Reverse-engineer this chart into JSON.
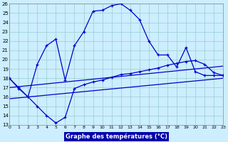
{
  "xlabel": "Graphe des températures (°C)",
  "background_color": "#cceeff",
  "line_color": "#0000cc",
  "grid_color": "#99cccc",
  "ylim": [
    13,
    26
  ],
  "xlim": [
    0,
    23
  ],
  "yticks": [
    13,
    14,
    15,
    16,
    17,
    18,
    19,
    20,
    21,
    22,
    23,
    24,
    25,
    26
  ],
  "xticks": [
    0,
    1,
    2,
    3,
    4,
    5,
    6,
    7,
    8,
    9,
    10,
    11,
    12,
    13,
    14,
    15,
    16,
    17,
    18,
    19,
    20,
    21,
    22,
    23
  ],
  "line_main": {
    "x": [
      0,
      1,
      2,
      3,
      4,
      5,
      6,
      7,
      8,
      9,
      10,
      11,
      12,
      13,
      14,
      15,
      16,
      17,
      18,
      19,
      20,
      21,
      22,
      23
    ],
    "y": [
      18.0,
      17.0,
      16.0,
      19.5,
      21.5,
      22.2,
      17.8,
      21.5,
      23.0,
      25.2,
      25.3,
      25.8,
      26.0,
      25.3,
      24.3,
      22.0,
      20.5,
      20.5,
      19.2,
      21.3,
      18.7,
      18.3,
      18.3,
      18.3
    ]
  },
  "line_low": {
    "x": [
      0,
      1,
      2,
      3,
      4,
      5,
      6,
      7,
      8,
      9,
      10,
      11,
      12,
      13,
      14,
      15,
      16,
      17,
      18,
      19,
      20,
      21,
      22,
      23
    ],
    "y": [
      18.0,
      16.9,
      16.0,
      15.0,
      14.0,
      13.2,
      13.8,
      16.9,
      17.3,
      17.6,
      17.8,
      18.1,
      18.4,
      18.5,
      18.7,
      18.9,
      19.1,
      19.4,
      19.6,
      19.8,
      19.9,
      19.5,
      18.6,
      18.3
    ]
  },
  "trend1": {
    "x": [
      0,
      23
    ],
    "y": [
      17.0,
      19.3
    ]
  },
  "trend2": {
    "x": [
      0,
      23
    ],
    "y": [
      15.8,
      18.0
    ]
  }
}
